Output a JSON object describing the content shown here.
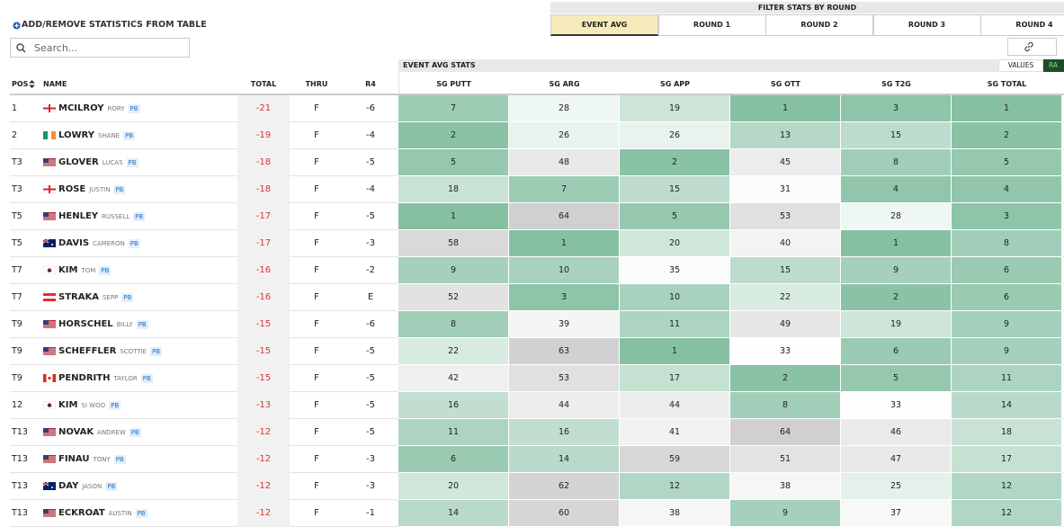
{
  "toolbar": {
    "add_remove": "ADD/REMOVE STATISTICS FROM TABLE",
    "search_placeholder": "Search..."
  },
  "filter": {
    "title": "FILTER STATS BY ROUND",
    "tabs": [
      "EVENT AVG",
      "ROUND 1",
      "ROUND 2",
      "ROUND 3",
      "ROUND 4"
    ]
  },
  "stats_bar": {
    "title": "EVENT AVG STATS",
    "toggle": [
      "VALUES",
      "RA"
    ]
  },
  "table": {
    "columns": [
      "POS",
      "NAME",
      "TOTAL",
      "THRU",
      "R4",
      "SG PUTT",
      "SG ARG",
      "SG APP",
      "SG OTT",
      "SG T2G",
      "SG TOTAL"
    ],
    "rows": [
      {
        "pos": "1",
        "last": "MCILROY",
        "first": "RORY",
        "badge": "PB",
        "total": "-21",
        "thru": "F",
        "r4": "-6",
        "stats": [
          7,
          28,
          19,
          1,
          3,
          1
        ]
      },
      {
        "pos": "2",
        "last": "LOWRY",
        "first": "SHANE",
        "badge": "PB",
        "total": "-19",
        "thru": "F",
        "r4": "-4",
        "stats": [
          2,
          26,
          26,
          13,
          15,
          2
        ]
      },
      {
        "pos": "T3",
        "last": "GLOVER",
        "first": "LUCAS",
        "badge": "PB",
        "total": "-18",
        "thru": "F",
        "r4": "-5",
        "stats": [
          5,
          48,
          2,
          45,
          8,
          5
        ]
      },
      {
        "pos": "T3",
        "last": "ROSE",
        "first": "JUSTIN",
        "badge": "PB",
        "total": "-18",
        "thru": "F",
        "r4": "-4",
        "stats": [
          18,
          7,
          15,
          31,
          4,
          4
        ]
      },
      {
        "pos": "T5",
        "last": "HENLEY",
        "first": "RUSSELL",
        "badge": "PB",
        "total": "-17",
        "thru": "F",
        "r4": "-5",
        "stats": [
          1,
          64,
          5,
          53,
          28,
          3
        ]
      },
      {
        "pos": "T5",
        "last": "DAVIS",
        "first": "CAMERON",
        "badge": "PB",
        "total": "-17",
        "thru": "F",
        "r4": "-3",
        "stats": [
          58,
          1,
          20,
          40,
          1,
          8
        ]
      },
      {
        "pos": "T7",
        "last": "KIM",
        "first": "TOM",
        "badge": "PB",
        "total": "-16",
        "thru": "F",
        "r4": "-2",
        "stats": [
          9,
          10,
          35,
          15,
          9,
          6
        ]
      },
      {
        "pos": "T7",
        "last": "STRAKA",
        "first": "SEPP",
        "badge": "PB",
        "total": "-16",
        "thru": "F",
        "r4": "E",
        "stats": [
          52,
          3,
          10,
          22,
          2,
          6
        ]
      },
      {
        "pos": "T9",
        "last": "HORSCHEL",
        "first": "BILLY",
        "badge": "PB",
        "total": "-15",
        "thru": "F",
        "r4": "-6",
        "stats": [
          8,
          39,
          11,
          49,
          19,
          9
        ]
      },
      {
        "pos": "T9",
        "last": "SCHEFFLER",
        "first": "SCOTTIE",
        "badge": "PB",
        "total": "-15",
        "thru": "F",
        "r4": "-5",
        "stats": [
          22,
          63,
          1,
          33,
          6,
          9
        ]
      },
      {
        "pos": "T9",
        "last": "PENDRITH",
        "first": "TAYLOR",
        "badge": "PB",
        "total": "-15",
        "thru": "F",
        "r4": "-5",
        "stats": [
          42,
          53,
          17,
          2,
          5,
          11
        ]
      },
      {
        "pos": "12",
        "last": "KIM",
        "first": "SI WOO",
        "badge": "PB",
        "total": "-13",
        "thru": "F",
        "r4": "-5",
        "stats": [
          16,
          44,
          44,
          8,
          33,
          14
        ]
      },
      {
        "pos": "T13",
        "last": "NOVAK",
        "first": "ANDREW",
        "badge": "PB",
        "total": "-12",
        "thru": "F",
        "r4": "-5",
        "stats": [
          11,
          16,
          41,
          64,
          46,
          18
        ]
      },
      {
        "pos": "T13",
        "last": "FINAU",
        "first": "TONY",
        "badge": "PB",
        "total": "-12",
        "thru": "F",
        "r4": "-3",
        "stats": [
          6,
          14,
          59,
          51,
          47,
          17
        ]
      },
      {
        "pos": "T13",
        "last": "DAY",
        "first": "JASON",
        "badge": "PB",
        "total": "-12",
        "thru": "F",
        "r4": "-3",
        "stats": [
          20,
          62,
          12,
          38,
          25,
          12
        ]
      },
      {
        "pos": "T13",
        "last": "ECKROAT",
        "first": "AUSTIN",
        "badge": "PB",
        "total": "-12",
        "thru": "F",
        "r4": "-1",
        "stats": [
          14,
          60,
          38,
          9,
          37,
          12
        ]
      }
    ]
  }
}
